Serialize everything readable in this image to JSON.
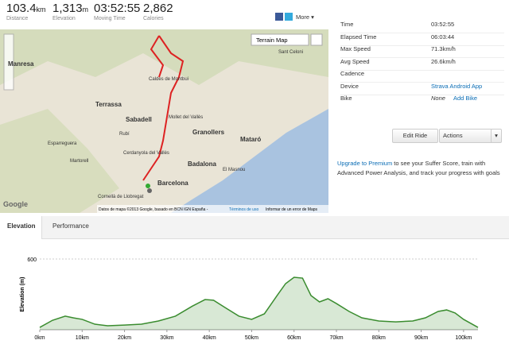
{
  "header": {
    "stats": [
      {
        "value": "103.4",
        "unit": "km",
        "label": "Distance"
      },
      {
        "value": "1,313",
        "unit": "m",
        "label": "Elevation"
      },
      {
        "value": "03:52:55",
        "label": "Moving Time"
      },
      {
        "value": "2,862",
        "label": "Calories"
      }
    ],
    "more": "More"
  },
  "map": {
    "type_button": "Terrain Map",
    "places": [
      "Manresa",
      "Terrassa",
      "Sabadell",
      "Granollers",
      "Mataró",
      "Badalona",
      "Barcelona",
      "Cornellà de Llobregat",
      "Martorell",
      "El Masnou",
      "Rubí",
      "Cerdanyola del Vallès",
      "Caldes de Montbui",
      "Mollet del Vallès",
      "Esparreguera",
      "Sant Celoni"
    ],
    "logo": "Google",
    "attribution": "Datos de mapa ©2013 Google, basado en BCN IGN España -",
    "terms": "Términos de uso",
    "report": "Informar de un error de Maps"
  },
  "details": [
    {
      "label": "Time",
      "value": "03:52:55"
    },
    {
      "label": "Elapsed Time",
      "value": "06:03:44"
    },
    {
      "label": "Max Speed",
      "value": "71.3km/h"
    },
    {
      "label": "Avg Speed",
      "value": "26.6km/h"
    },
    {
      "label": "Cadence"
    },
    {
      "label": "Device",
      "value": "Strava Android App"
    },
    {
      "label": "Bike",
      "value": "None",
      "link": "Add Bike"
    }
  ],
  "buttons": {
    "edit": "Edit Ride",
    "actions": "Actions"
  },
  "upgrade": {
    "link": "Upgrade to Premium",
    "text": " to see your Suffer Score, train with Advanced Power Analysis, and track your progress with goals"
  },
  "tabs": [
    "Elevation",
    "Performance"
  ],
  "chart_data": {
    "type": "area",
    "y_label": "Elevation (m)",
    "color": "#3a8c2f",
    "grid": true,
    "x": [
      0,
      3,
      6,
      8,
      10,
      13,
      16,
      20,
      24,
      28,
      32,
      36,
      39,
      41,
      44,
      47,
      50,
      53,
      56,
      58,
      60,
      62,
      64,
      66,
      68,
      70,
      73,
      76,
      80,
      84,
      88,
      91,
      94,
      96,
      98,
      100,
      103.4
    ],
    "values": [
      20,
      80,
      115,
      100,
      88,
      47,
      34,
      40,
      47,
      74,
      115,
      200,
      256,
      250,
      182,
      115,
      88,
      135,
      290,
      391,
      445,
      438,
      290,
      236,
      263,
      222,
      155,
      101,
      74,
      67,
      74,
      101,
      155,
      168,
      142,
      88,
      20
    ],
    "xlim": [
      0,
      103.4
    ],
    "ylim": [
      0,
      600
    ],
    "xticks": [
      {
        "value": 0,
        "label": "0km"
      },
      {
        "value": 10,
        "label": "10km"
      },
      {
        "value": 20,
        "label": "20km"
      },
      {
        "value": 30,
        "label": "30km"
      },
      {
        "value": 40,
        "label": "40km"
      },
      {
        "value": 50,
        "label": "50km"
      },
      {
        "value": 60,
        "label": "60km"
      },
      {
        "value": 70,
        "label": "70km"
      },
      {
        "value": 80,
        "label": "80km"
      },
      {
        "value": 90,
        "label": "90km"
      },
      {
        "value": 100,
        "label": "100km"
      }
    ],
    "yticks": [
      600
    ]
  }
}
